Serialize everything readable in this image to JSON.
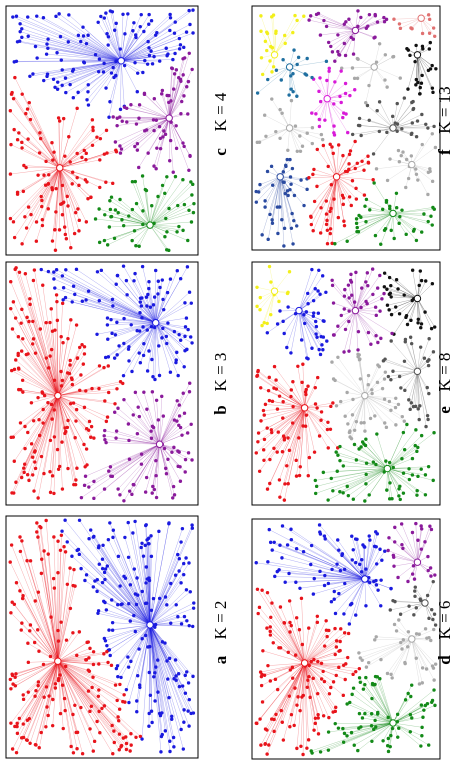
{
  "panels": [
    {
      "letter": "a",
      "label": "K = 2"
    },
    {
      "letter": "b",
      "label": "K = 3"
    },
    {
      "letter": "c",
      "label": "K = 4"
    },
    {
      "letter": "d",
      "label": "K = 6"
    },
    {
      "letter": "e",
      "label": "K = 8"
    },
    {
      "letter": "f",
      "label": "K = 13"
    }
  ]
}
